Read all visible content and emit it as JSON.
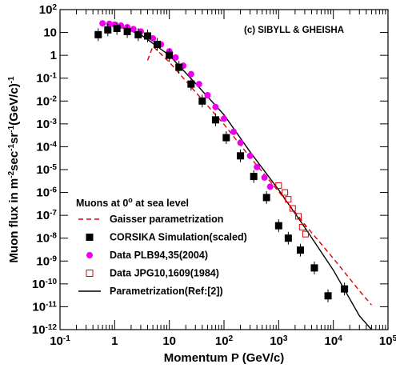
{
  "chart_data": {
    "type": "scatter",
    "xscale": "log",
    "yscale": "log",
    "xlim": [
      0.1,
      100000
    ],
    "ylim": [
      1e-12,
      100
    ],
    "xlabel": "Momentum P (GeV/c)",
    "ylabel_parts": [
      "Muon flux in m",
      "-2",
      "sec",
      "-1",
      "sr",
      "-1",
      "(GeV/c)",
      "-1"
    ],
    "x_tick_labels": [
      {
        "base": "10",
        "exp": "-1"
      },
      {
        "base": "1",
        "exp": ""
      },
      {
        "base": "10",
        "exp": ""
      },
      {
        "base": "10",
        "exp": "2"
      },
      {
        "base": "10",
        "exp": "3"
      },
      {
        "base": "10",
        "exp": "4"
      },
      {
        "base": "10",
        "exp": "5"
      }
    ],
    "y_tick_labels": [
      {
        "base": "10",
        "exp": "2"
      },
      {
        "base": "10",
        "exp": ""
      },
      {
        "base": "1",
        "exp": ""
      },
      {
        "base": "10",
        "exp": "-1"
      },
      {
        "base": "10",
        "exp": "-2"
      },
      {
        "base": "10",
        "exp": "-3"
      },
      {
        "base": "10",
        "exp": "-4"
      },
      {
        "base": "10",
        "exp": "-5"
      },
      {
        "base": "10",
        "exp": "-6"
      },
      {
        "base": "10",
        "exp": "-7"
      },
      {
        "base": "10",
        "exp": "-8"
      },
      {
        "base": "10",
        "exp": "-9"
      },
      {
        "base": "10",
        "exp": "-10"
      },
      {
        "base": "10",
        "exp": "-11"
      },
      {
        "base": "10",
        "exp": "-12"
      }
    ],
    "annotation": "(c) SIBYLL & GHEISHA",
    "legend_title_parts": [
      "Muons at 0",
      "o",
      " at sea level"
    ],
    "series": [
      {
        "name": "Gaisser parametrization",
        "kind": "line",
        "style": "dashed",
        "color": "#dd0000",
        "points": [
          [
            4,
            0.6
          ],
          [
            5,
            2.5
          ],
          [
            10,
            0.5
          ],
          [
            30,
            0.025
          ],
          [
            100,
            0.00095
          ],
          [
            300,
            3.5e-05
          ],
          [
            1000,
            1.1e-06
          ],
          [
            3000,
            4e-08
          ],
          [
            10000,
            1.3e-09
          ],
          [
            30000,
            5e-11
          ],
          [
            50000,
            1.2e-11
          ]
        ]
      },
      {
        "name": "CORSIKA Simulation(scaled)",
        "kind": "marker",
        "marker": "filled-square",
        "color": "#000000",
        "points": [
          [
            0.5,
            8
          ],
          [
            0.75,
            13
          ],
          [
            1.1,
            15
          ],
          [
            1.7,
            11
          ],
          [
            2.7,
            8
          ],
          [
            4,
            7
          ],
          [
            6,
            3
          ],
          [
            10,
            1
          ],
          [
            15,
            0.3
          ],
          [
            25,
            0.055
          ],
          [
            40,
            0.01
          ],
          [
            70,
            0.0015
          ],
          [
            110,
            0.00025
          ],
          [
            200,
            4e-05
          ],
          [
            350,
            5e-06
          ],
          [
            600,
            6e-07
          ],
          [
            1000,
            3.5e-08
          ],
          [
            1500,
            1e-08
          ],
          [
            2500,
            3e-09
          ],
          [
            4500,
            5e-10
          ],
          [
            8000,
            3e-11
          ],
          [
            16000,
            6e-11
          ]
        ]
      },
      {
        "name": "Data PLB94,35(2004)",
        "kind": "marker",
        "marker": "filled-circle",
        "color": "#ee00ee",
        "points": [
          [
            0.6,
            25
          ],
          [
            0.8,
            24
          ],
          [
            1,
            22
          ],
          [
            1.3,
            20
          ],
          [
            1.7,
            17
          ],
          [
            2.2,
            14
          ],
          [
            3,
            11
          ],
          [
            4,
            7.5
          ],
          [
            5,
            5.5
          ],
          [
            7,
            3
          ],
          [
            10,
            1.5
          ],
          [
            13,
            0.8
          ],
          [
            18,
            0.35
          ],
          [
            25,
            0.15
          ],
          [
            35,
            0.055
          ],
          [
            50,
            0.018
          ],
          [
            70,
            0.0055
          ],
          [
            100,
            0.0017
          ],
          [
            150,
            0.00045
          ],
          [
            200,
            0.00015
          ],
          [
            300,
            4e-05
          ],
          [
            400,
            1.3e-05
          ],
          [
            550,
            4.5e-06
          ],
          [
            700,
            1.8e-06
          ]
        ]
      },
      {
        "name": "Data JPG10,1609(1984)",
        "kind": "marker",
        "marker": "open-square",
        "color": "#dd0000",
        "points": [
          [
            1000,
            2e-06
          ],
          [
            1300,
            1e-06
          ],
          [
            1500,
            5e-07
          ],
          [
            1800,
            2e-07
          ],
          [
            2300,
            9e-08
          ],
          [
            2700,
            3e-08
          ],
          [
            3100,
            1.5e-08
          ]
        ]
      },
      {
        "name": "Parametrization(Ref:[2])",
        "kind": "line",
        "style": "solid",
        "color": "#000000",
        "points": [
          [
            1,
            22
          ],
          [
            3,
            8
          ],
          [
            10,
            1
          ],
          [
            30,
            0.06
          ],
          [
            100,
            0.0025
          ],
          [
            300,
            6e-05
          ],
          [
            1000,
            1.3e-06
          ],
          [
            3000,
            3e-08
          ],
          [
            10000,
            4e-10
          ],
          [
            30000,
            4e-12
          ],
          [
            50000,
            1e-12
          ]
        ]
      }
    ]
  }
}
